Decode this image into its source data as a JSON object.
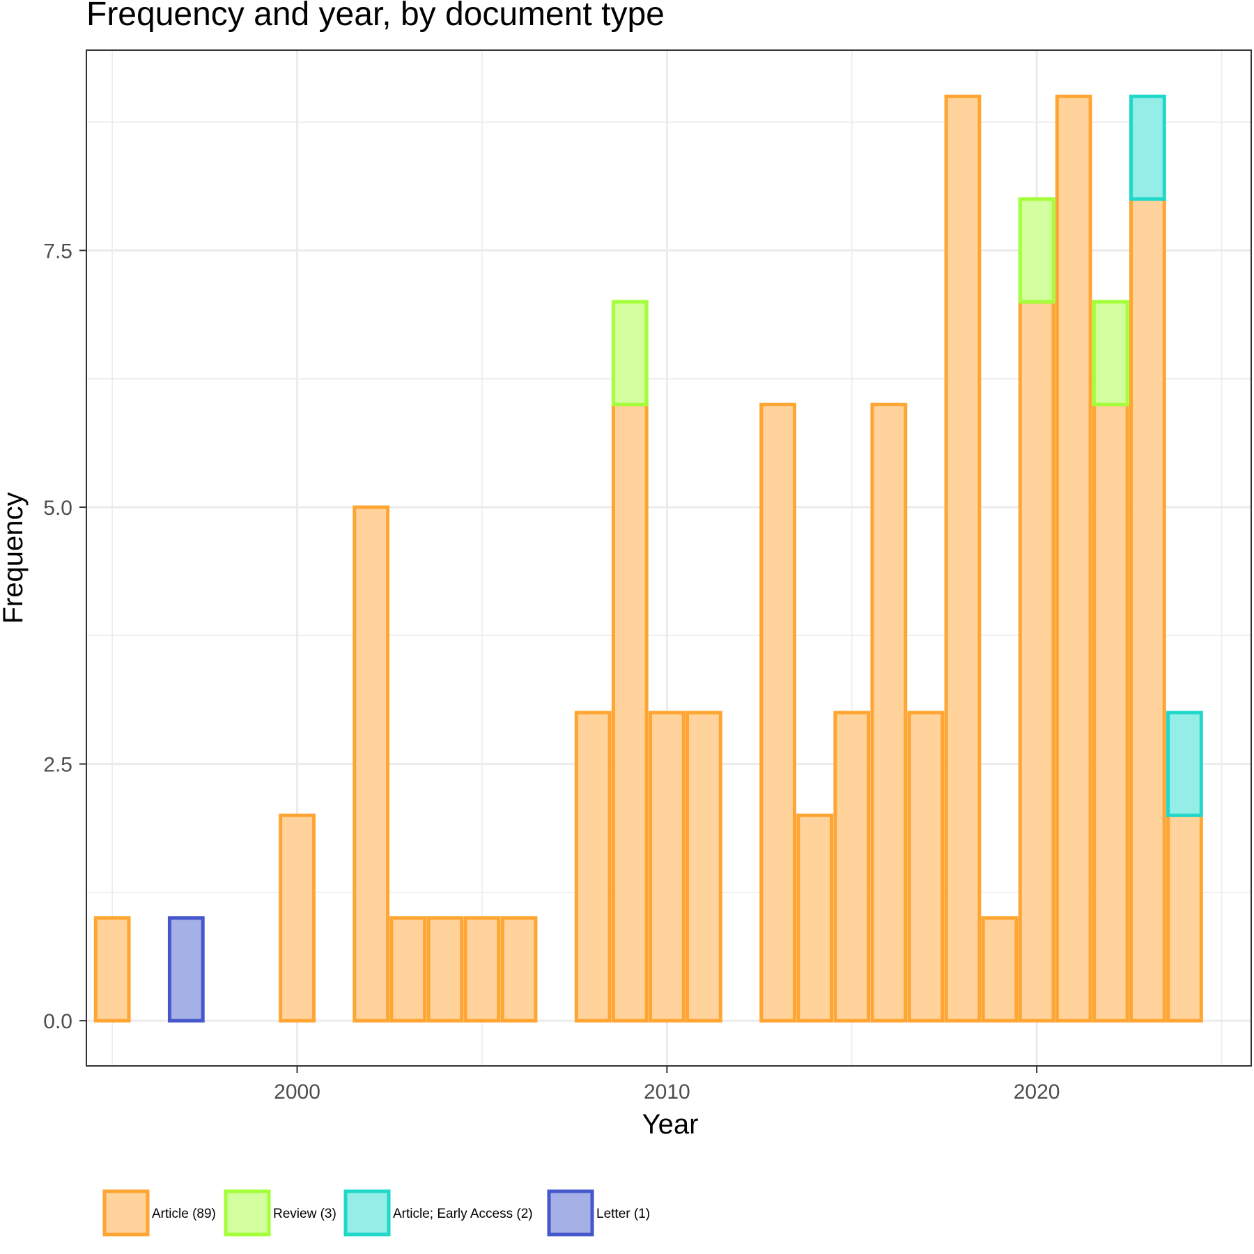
{
  "chart_data": {
    "type": "bar",
    "stacked": true,
    "title": "Frequency and year, by document type",
    "xlabel": "Year",
    "ylabel": "Frequency",
    "xlim": [
      1994.3,
      2025.8
    ],
    "ylim": [
      -0.44,
      9.45
    ],
    "x_ticks": [
      2000,
      2010,
      2020
    ],
    "x_tick_labels": [
      "2000",
      "2010",
      "2020"
    ],
    "y_ticks": [
      0.0,
      2.5,
      5.0,
      7.5
    ],
    "y_tick_labels": [
      "0.0",
      "2.5",
      "5.0",
      "7.5"
    ],
    "grid": true,
    "legend_position": "bottom",
    "categories": [
      1995,
      1997,
      2000,
      2002,
      2003,
      2004,
      2005,
      2006,
      2008,
      2009,
      2010,
      2011,
      2013,
      2014,
      2015,
      2016,
      2017,
      2018,
      2019,
      2020,
      2021,
      2022,
      2023,
      2024
    ],
    "series": [
      {
        "name": "Article (89)",
        "fill": "#ffd39b",
        "stroke": "#ffa533",
        "values": [
          1,
          0,
          2,
          5,
          1,
          1,
          1,
          1,
          3,
          6,
          3,
          3,
          6,
          2,
          3,
          6,
          3,
          9,
          1,
          7,
          9,
          6,
          8,
          2
        ]
      },
      {
        "name": "Review (3)",
        "fill": "#d3ff9e",
        "stroke": "#a3ff3a",
        "values": [
          0,
          0,
          0,
          0,
          0,
          0,
          0,
          0,
          0,
          1,
          0,
          0,
          0,
          0,
          0,
          0,
          0,
          0,
          0,
          1,
          0,
          1,
          0,
          0
        ]
      },
      {
        "name": "Article; Early Access (2)",
        "fill": "#94ede6",
        "stroke": "#20d8c9",
        "values": [
          0,
          0,
          0,
          0,
          0,
          0,
          0,
          0,
          0,
          0,
          0,
          0,
          0,
          0,
          0,
          0,
          0,
          0,
          0,
          0,
          0,
          0,
          1,
          1
        ]
      },
      {
        "name": "Letter (1)",
        "fill": "#a5b0e6",
        "stroke": "#4657cc",
        "values": [
          0,
          1,
          0,
          0,
          0,
          0,
          0,
          0,
          0,
          0,
          0,
          0,
          0,
          0,
          0,
          0,
          0,
          0,
          0,
          0,
          0,
          0,
          0,
          0
        ]
      }
    ]
  }
}
